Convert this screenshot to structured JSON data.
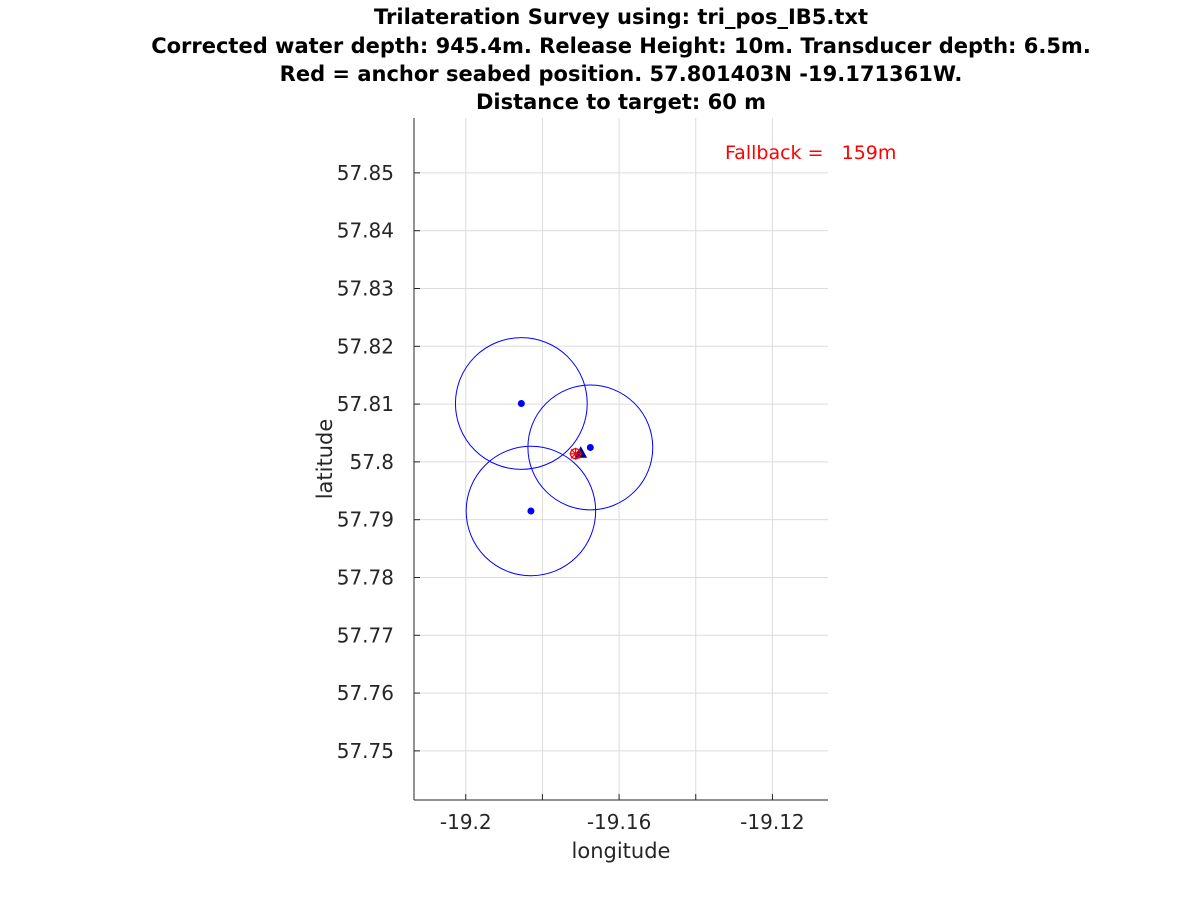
{
  "chart_data": {
    "type": "scatter",
    "title_lines": [
      "Trilateration Survey using: tri_pos_IB5.txt",
      "Corrected water depth: 945.4m. Release Height: 10m. Transducer depth: 6.5m.",
      "Red = anchor seabed position. 57.801403N -19.171361W.",
      "Distance to target: 60 m"
    ],
    "xlabel": "longitude",
    "ylabel": "latitude",
    "xlim": [
      -19.2135,
      -19.1055
    ],
    "ylim": [
      57.7415,
      57.8595
    ],
    "xticks": [
      -19.2,
      -19.18,
      -19.16,
      -19.14,
      -19.12
    ],
    "xtick_labels": [
      "-19.2",
      "",
      "-19.16",
      "",
      "-19.12"
    ],
    "yticks": [
      57.75,
      57.76,
      57.77,
      57.78,
      57.79,
      57.8,
      57.81,
      57.82,
      57.83,
      57.84,
      57.85
    ],
    "ytick_labels": [
      "57.75",
      "57.76",
      "57.77",
      "57.78",
      "57.79",
      "57.8",
      "57.81",
      "57.82",
      "57.83",
      "57.84",
      "57.85"
    ],
    "grid": true,
    "stations": [
      {
        "lon": -19.1855,
        "lat": 57.8101
      },
      {
        "lon": -19.183,
        "lat": 57.7915
      },
      {
        "lon": -19.1675,
        "lat": 57.8025
      }
    ],
    "range_circles": [
      {
        "lon": -19.1855,
        "lat": 57.8101,
        "radius_lat": 0.0114
      },
      {
        "lon": -19.183,
        "lat": 57.7915,
        "radius_lat": 0.0112
      },
      {
        "lon": -19.1675,
        "lat": 57.8025,
        "radius_lat": 0.0108
      }
    ],
    "anchor_position": {
      "lon": -19.171361,
      "lat": 57.801403
    },
    "target_position": {
      "lon": -19.17,
      "lat": 57.8015
    },
    "annotation": "Fallback =   159m",
    "colors": {
      "stations": "#0000ff",
      "circles": "#0000ff",
      "anchor": "#ff0000",
      "target": "#00008b",
      "annotation": "#ff0000"
    }
  }
}
